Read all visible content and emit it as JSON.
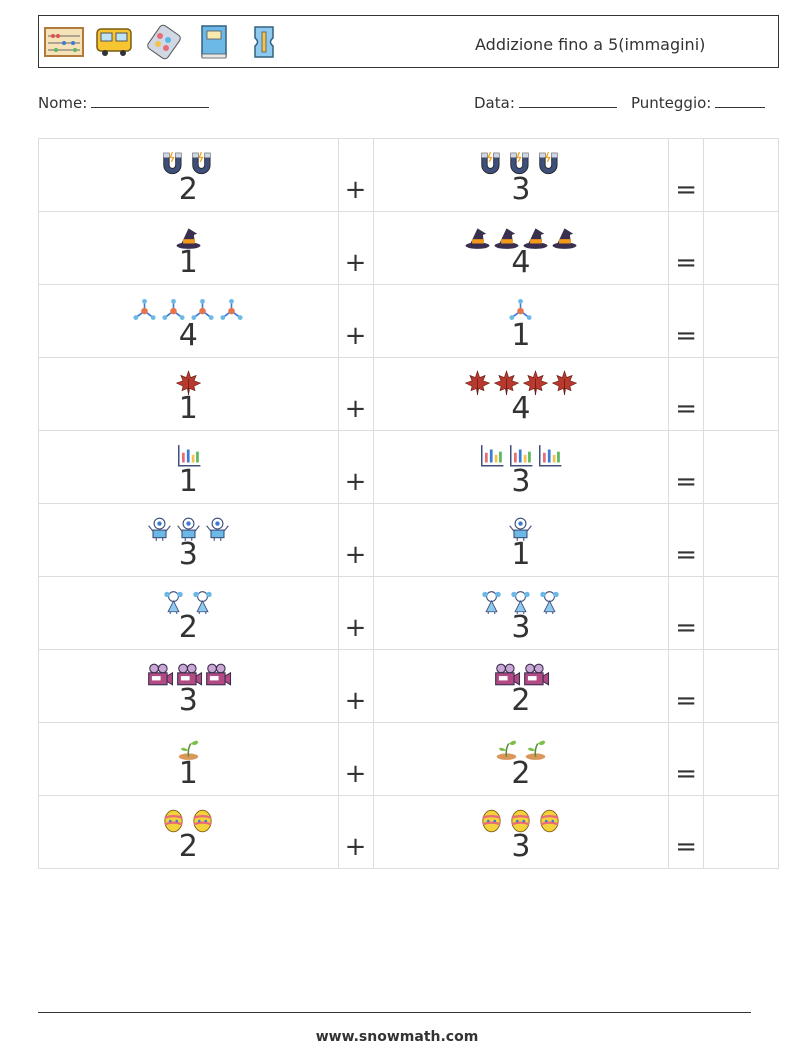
{
  "header": {
    "title": "Addizione fino a 5(immagini)",
    "icons": [
      "abacus-icon",
      "school-bus-icon",
      "pill-pack-icon",
      "book-icon",
      "pencil-sharpener-icon"
    ]
  },
  "info": {
    "name_label": "Nome:",
    "date_label": "Data:",
    "score_label": "Punteggio:"
  },
  "operators": {
    "plus": "+",
    "equals": "="
  },
  "rows": [
    {
      "icon": "magnet-icon",
      "a": 2,
      "b": 3,
      "a_text": "2",
      "b_text": "3"
    },
    {
      "icon": "witch-hat-icon",
      "a": 1,
      "b": 4,
      "a_text": "1",
      "b_text": "4"
    },
    {
      "icon": "molecule-icon",
      "a": 4,
      "b": 1,
      "a_text": "4",
      "b_text": "1"
    },
    {
      "icon": "maple-leaf-icon",
      "a": 1,
      "b": 4,
      "a_text": "1",
      "b_text": "4"
    },
    {
      "icon": "chart-icon",
      "a": 1,
      "b": 3,
      "a_text": "1",
      "b_text": "3"
    },
    {
      "icon": "robot-icon",
      "a": 3,
      "b": 1,
      "a_text": "3",
      "b_text": "1"
    },
    {
      "icon": "girl-icon",
      "a": 2,
      "b": 3,
      "a_text": "2",
      "b_text": "3"
    },
    {
      "icon": "movie-camera-icon",
      "a": 3,
      "b": 2,
      "a_text": "3",
      "b_text": "2"
    },
    {
      "icon": "sprout-icon",
      "a": 1,
      "b": 2,
      "a_text": "1",
      "b_text": "2"
    },
    {
      "icon": "easter-egg-icon",
      "a": 2,
      "b": 3,
      "a_text": "2",
      "b_text": "3"
    }
  ],
  "footer": {
    "url": "www.snowmath.com"
  }
}
